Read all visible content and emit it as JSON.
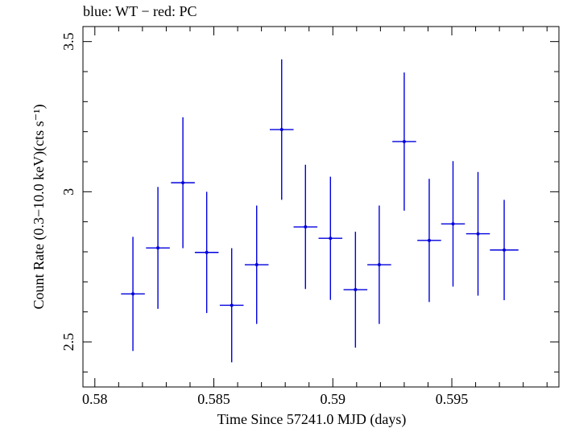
{
  "title": "blue: WT − red: PC",
  "chart_data": {
    "type": "scatter",
    "title": "blue: WT − red: PC",
    "xlabel": "Time Since 57241.0 MJD (days)",
    "ylabel": "Count Rate (0.3−10.0 keV)(cts s⁻¹)",
    "xlim": [
      0.5795,
      0.5995
    ],
    "ylim": [
      2.35,
      3.55
    ],
    "x_ticks": [
      {
        "value": 0.58,
        "label": "0.58"
      },
      {
        "value": 0.585,
        "label": "0.585"
      },
      {
        "value": 0.59,
        "label": "0.59"
      },
      {
        "value": 0.595,
        "label": "0.595"
      }
    ],
    "y_ticks": [
      {
        "value": 2.5,
        "label": "2.5"
      },
      {
        "value": 3.0,
        "label": "3"
      },
      {
        "value": 3.5,
        "label": "3.5"
      }
    ],
    "grid": false,
    "series": [
      {
        "name": "WT",
        "color": "#0000dd",
        "points": [
          {
            "x": 0.5816,
            "xerr": 0.0005,
            "y": 2.66,
            "yerr": 0.19
          },
          {
            "x": 0.58265,
            "xerr": 0.0005,
            "y": 2.813,
            "yerr": 0.203
          },
          {
            "x": 0.5837,
            "xerr": 0.0005,
            "y": 3.03,
            "yerr": 0.218
          },
          {
            "x": 0.5847,
            "xerr": 0.0005,
            "y": 2.798,
            "yerr": 0.202
          },
          {
            "x": 0.58575,
            "xerr": 0.0005,
            "y": 2.622,
            "yerr": 0.19
          },
          {
            "x": 0.5868,
            "xerr": 0.0005,
            "y": 2.757,
            "yerr": 0.197
          },
          {
            "x": 0.58785,
            "xerr": 0.0005,
            "y": 3.207,
            "yerr": 0.234
          },
          {
            "x": 0.58885,
            "xerr": 0.0005,
            "y": 2.883,
            "yerr": 0.207
          },
          {
            "x": 0.5899,
            "xerr": 0.0005,
            "y": 2.845,
            "yerr": 0.205
          },
          {
            "x": 0.59095,
            "xerr": 0.0005,
            "y": 2.674,
            "yerr": 0.193
          },
          {
            "x": 0.59195,
            "xerr": 0.0005,
            "y": 2.757,
            "yerr": 0.197
          },
          {
            "x": 0.593,
            "xerr": 0.0005,
            "y": 3.167,
            "yerr": 0.23
          },
          {
            "x": 0.59405,
            "xerr": 0.0005,
            "y": 2.838,
            "yerr": 0.205
          },
          {
            "x": 0.59505,
            "xerr": 0.0005,
            "y": 2.893,
            "yerr": 0.209
          },
          {
            "x": 0.5961,
            "xerr": 0.0005,
            "y": 2.86,
            "yerr": 0.206
          },
          {
            "x": 0.5972,
            "xerr": 0.0006,
            "y": 2.806,
            "yerr": 0.167
          }
        ]
      }
    ]
  }
}
